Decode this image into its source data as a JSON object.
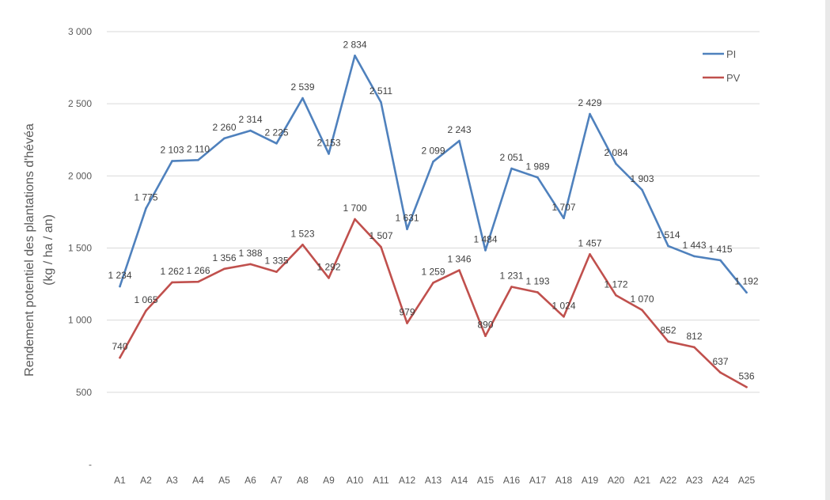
{
  "chart_data": {
    "type": "line",
    "ylabel_line1": "Rendement  potentiel des plantations d'hévéa",
    "ylabel_line2": "(kg / ha / an)",
    "ylim": [
      0,
      3000
    ],
    "yticks": [
      0,
      500,
      1000,
      1500,
      2000,
      2500,
      3000
    ],
    "ytick_labels": [
      "-",
      "500",
      "1 000",
      "1 500",
      "2 000",
      "2 500",
      "3 000"
    ],
    "grid": true,
    "legend_position": "top-right",
    "categories": [
      "A1",
      "A2",
      "A3",
      "A4",
      "A5",
      "A6",
      "A7",
      "A8",
      "A9",
      "A10",
      "A11",
      "A12",
      "A13",
      "A14",
      "A15",
      "A16",
      "A17",
      "A18",
      "A19",
      "A20",
      "A21",
      "A22",
      "A23",
      "A24",
      "A25"
    ],
    "series": [
      {
        "name": "PI",
        "color": "#4f81bd",
        "values": [
          1234,
          1775,
          2103,
          2110,
          2260,
          2314,
          2225,
          2539,
          2153,
          2834,
          2511,
          1631,
          2099,
          2243,
          1484,
          2051,
          1989,
          1707,
          2429,
          2084,
          1903,
          1514,
          1443,
          1415,
          1192
        ],
        "labels": [
          "1 234",
          "1 775",
          "2 103",
          "2 110",
          "2 260",
          "2 314",
          "2 225",
          "2 539",
          "2 153",
          "2 834",
          "2 511",
          "1 631",
          "2 099",
          "2 243",
          "1 484",
          "2 051",
          "1 989",
          "1 707",
          "2 429",
          "2 084",
          "1 903",
          "1 514",
          "1 443",
          "1 415",
          "1 192"
        ]
      },
      {
        "name": "PV",
        "color": "#c0504d",
        "values": [
          740,
          1065,
          1262,
          1266,
          1356,
          1388,
          1335,
          1523,
          1292,
          1700,
          1507,
          979,
          1259,
          1346,
          890,
          1231,
          1193,
          1024,
          1457,
          1172,
          1070,
          852,
          812,
          637,
          536
        ],
        "labels": [
          "740",
          "1 065",
          "1 262",
          "1 266",
          "1 356",
          "1 388",
          "1 335",
          "1 523",
          "1 292",
          "1 700",
          "1 507",
          "979",
          "1 259",
          "1 346",
          "890",
          "1 231",
          "1 193",
          "1 024",
          "1 457",
          "1 172",
          "1 070",
          "852",
          "812",
          "637",
          "536"
        ]
      }
    ]
  },
  "colors": {
    "grid": "#d9d9d9",
    "axis_text": "#595959",
    "label_text": "#404040"
  }
}
